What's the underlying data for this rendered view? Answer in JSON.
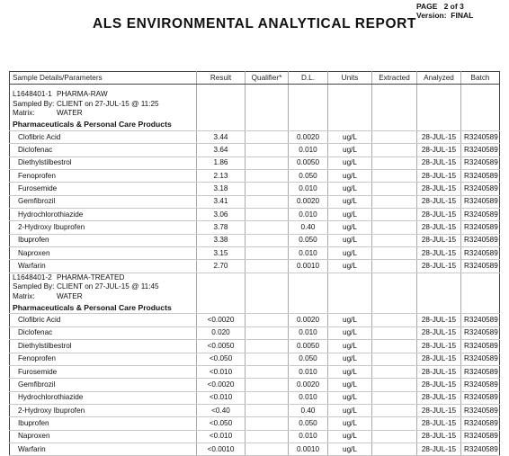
{
  "header": {
    "page_label": "PAGE",
    "page_num": "2",
    "page_of": "of",
    "page_total": "3",
    "version_label": "Version:",
    "version_value": "FINAL",
    "title": "ALS ENVIRONMENTAL ANALYTICAL REPORT"
  },
  "columns": [
    "Sample Details/Parameters",
    "Result",
    "Qualifier*",
    "D.L.",
    "Units",
    "Extracted",
    "Analyzed",
    "Batch"
  ],
  "samples": [
    {
      "id": "L1648401-1",
      "name": "PHARMA-RAW",
      "sampled_by_label": "Sampled By:",
      "sampled_by": "CLIENT on 27-JUL-15 @ 11:25",
      "matrix_label": "Matrix:",
      "matrix": "WATER",
      "section": "Pharmaceuticals & Personal Care Products",
      "rows": [
        {
          "param": "Clofibric Acid",
          "result": "3.44",
          "dl": "0.0020",
          "units": "ug/L",
          "analyzed": "28-JUL-15",
          "batch": "R3240589"
        },
        {
          "param": "Diclofenac",
          "result": "3.64",
          "dl": "0.010",
          "units": "ug/L",
          "analyzed": "28-JUL-15",
          "batch": "R3240589"
        },
        {
          "param": "Diethylstilbestrol",
          "result": "1.86",
          "dl": "0.0050",
          "units": "ug/L",
          "analyzed": "28-JUL-15",
          "batch": "R3240589"
        },
        {
          "param": "Fenoprofen",
          "result": "2.13",
          "dl": "0.050",
          "units": "ug/L",
          "analyzed": "28-JUL-15",
          "batch": "R3240589"
        },
        {
          "param": "Furosemide",
          "result": "3.18",
          "dl": "0.010",
          "units": "ug/L",
          "analyzed": "28-JUL-15",
          "batch": "R3240589"
        },
        {
          "param": "Gemfibrozil",
          "result": "3.41",
          "dl": "0.0020",
          "units": "ug/L",
          "analyzed": "28-JUL-15",
          "batch": "R3240589"
        },
        {
          "param": "Hydrochlorothiazide",
          "result": "3.06",
          "dl": "0.010",
          "units": "ug/L",
          "analyzed": "28-JUL-15",
          "batch": "R3240589"
        },
        {
          "param": "2-Hydroxy Ibuprofen",
          "result": "3.78",
          "dl": "0.40",
          "units": "ug/L",
          "analyzed": "28-JUL-15",
          "batch": "R3240589"
        },
        {
          "param": "Ibuprofen",
          "result": "3.38",
          "dl": "0.050",
          "units": "ug/L",
          "analyzed": "28-JUL-15",
          "batch": "R3240589"
        },
        {
          "param": "Naproxen",
          "result": "3.15",
          "dl": "0.010",
          "units": "ug/L",
          "analyzed": "28-JUL-15",
          "batch": "R3240589"
        },
        {
          "param": "Warfarin",
          "result": "2.70",
          "dl": "0.0010",
          "units": "ug/L",
          "analyzed": "28-JUL-15",
          "batch": "R3240589"
        }
      ]
    },
    {
      "id": "L1648401-2",
      "name": "PHARMA-TREATED",
      "sampled_by_label": "Sampled By:",
      "sampled_by": "CLIENT on 27-JUL-15 @ 11:45",
      "matrix_label": "Matrix:",
      "matrix": "WATER",
      "section": "Pharmaceuticals & Personal Care Products",
      "rows": [
        {
          "param": "Clofibric Acid",
          "result": "<0.0020",
          "dl": "0.0020",
          "units": "ug/L",
          "analyzed": "28-JUL-15",
          "batch": "R3240589"
        },
        {
          "param": "Diclofenac",
          "result": "0.020",
          "dl": "0.010",
          "units": "ug/L",
          "analyzed": "28-JUL-15",
          "batch": "R3240589"
        },
        {
          "param": "Diethylstilbestrol",
          "result": "<0.0050",
          "dl": "0.0050",
          "units": "ug/L",
          "analyzed": "28-JUL-15",
          "batch": "R3240589"
        },
        {
          "param": "Fenoprofen",
          "result": "<0.050",
          "dl": "0.050",
          "units": "ug/L",
          "analyzed": "28-JUL-15",
          "batch": "R3240589"
        },
        {
          "param": "Furosemide",
          "result": "<0.010",
          "dl": "0.010",
          "units": "ug/L",
          "analyzed": "28-JUL-15",
          "batch": "R3240589"
        },
        {
          "param": "Gemfibrozil",
          "result": "<0.0020",
          "dl": "0.0020",
          "units": "ug/L",
          "analyzed": "28-JUL-15",
          "batch": "R3240589"
        },
        {
          "param": "Hydrochlorothiazide",
          "result": "<0.010",
          "dl": "0.010",
          "units": "ug/L",
          "analyzed": "28-JUL-15",
          "batch": "R3240589"
        },
        {
          "param": "2-Hydroxy Ibuprofen",
          "result": "<0.40",
          "dl": "0.40",
          "units": "ug/L",
          "analyzed": "28-JUL-15",
          "batch": "R3240589"
        },
        {
          "param": "Ibuprofen",
          "result": "<0.050",
          "dl": "0.050",
          "units": "ug/L",
          "analyzed": "28-JUL-15",
          "batch": "R3240589"
        },
        {
          "param": "Naproxen",
          "result": "<0.010",
          "dl": "0.010",
          "units": "ug/L",
          "analyzed": "28-JUL-15",
          "batch": "R3240589"
        },
        {
          "param": "Warfarin",
          "result": "<0.0010",
          "dl": "0.0010",
          "units": "ug/L",
          "analyzed": "28-JUL-15",
          "batch": "R3240589"
        }
      ]
    }
  ]
}
